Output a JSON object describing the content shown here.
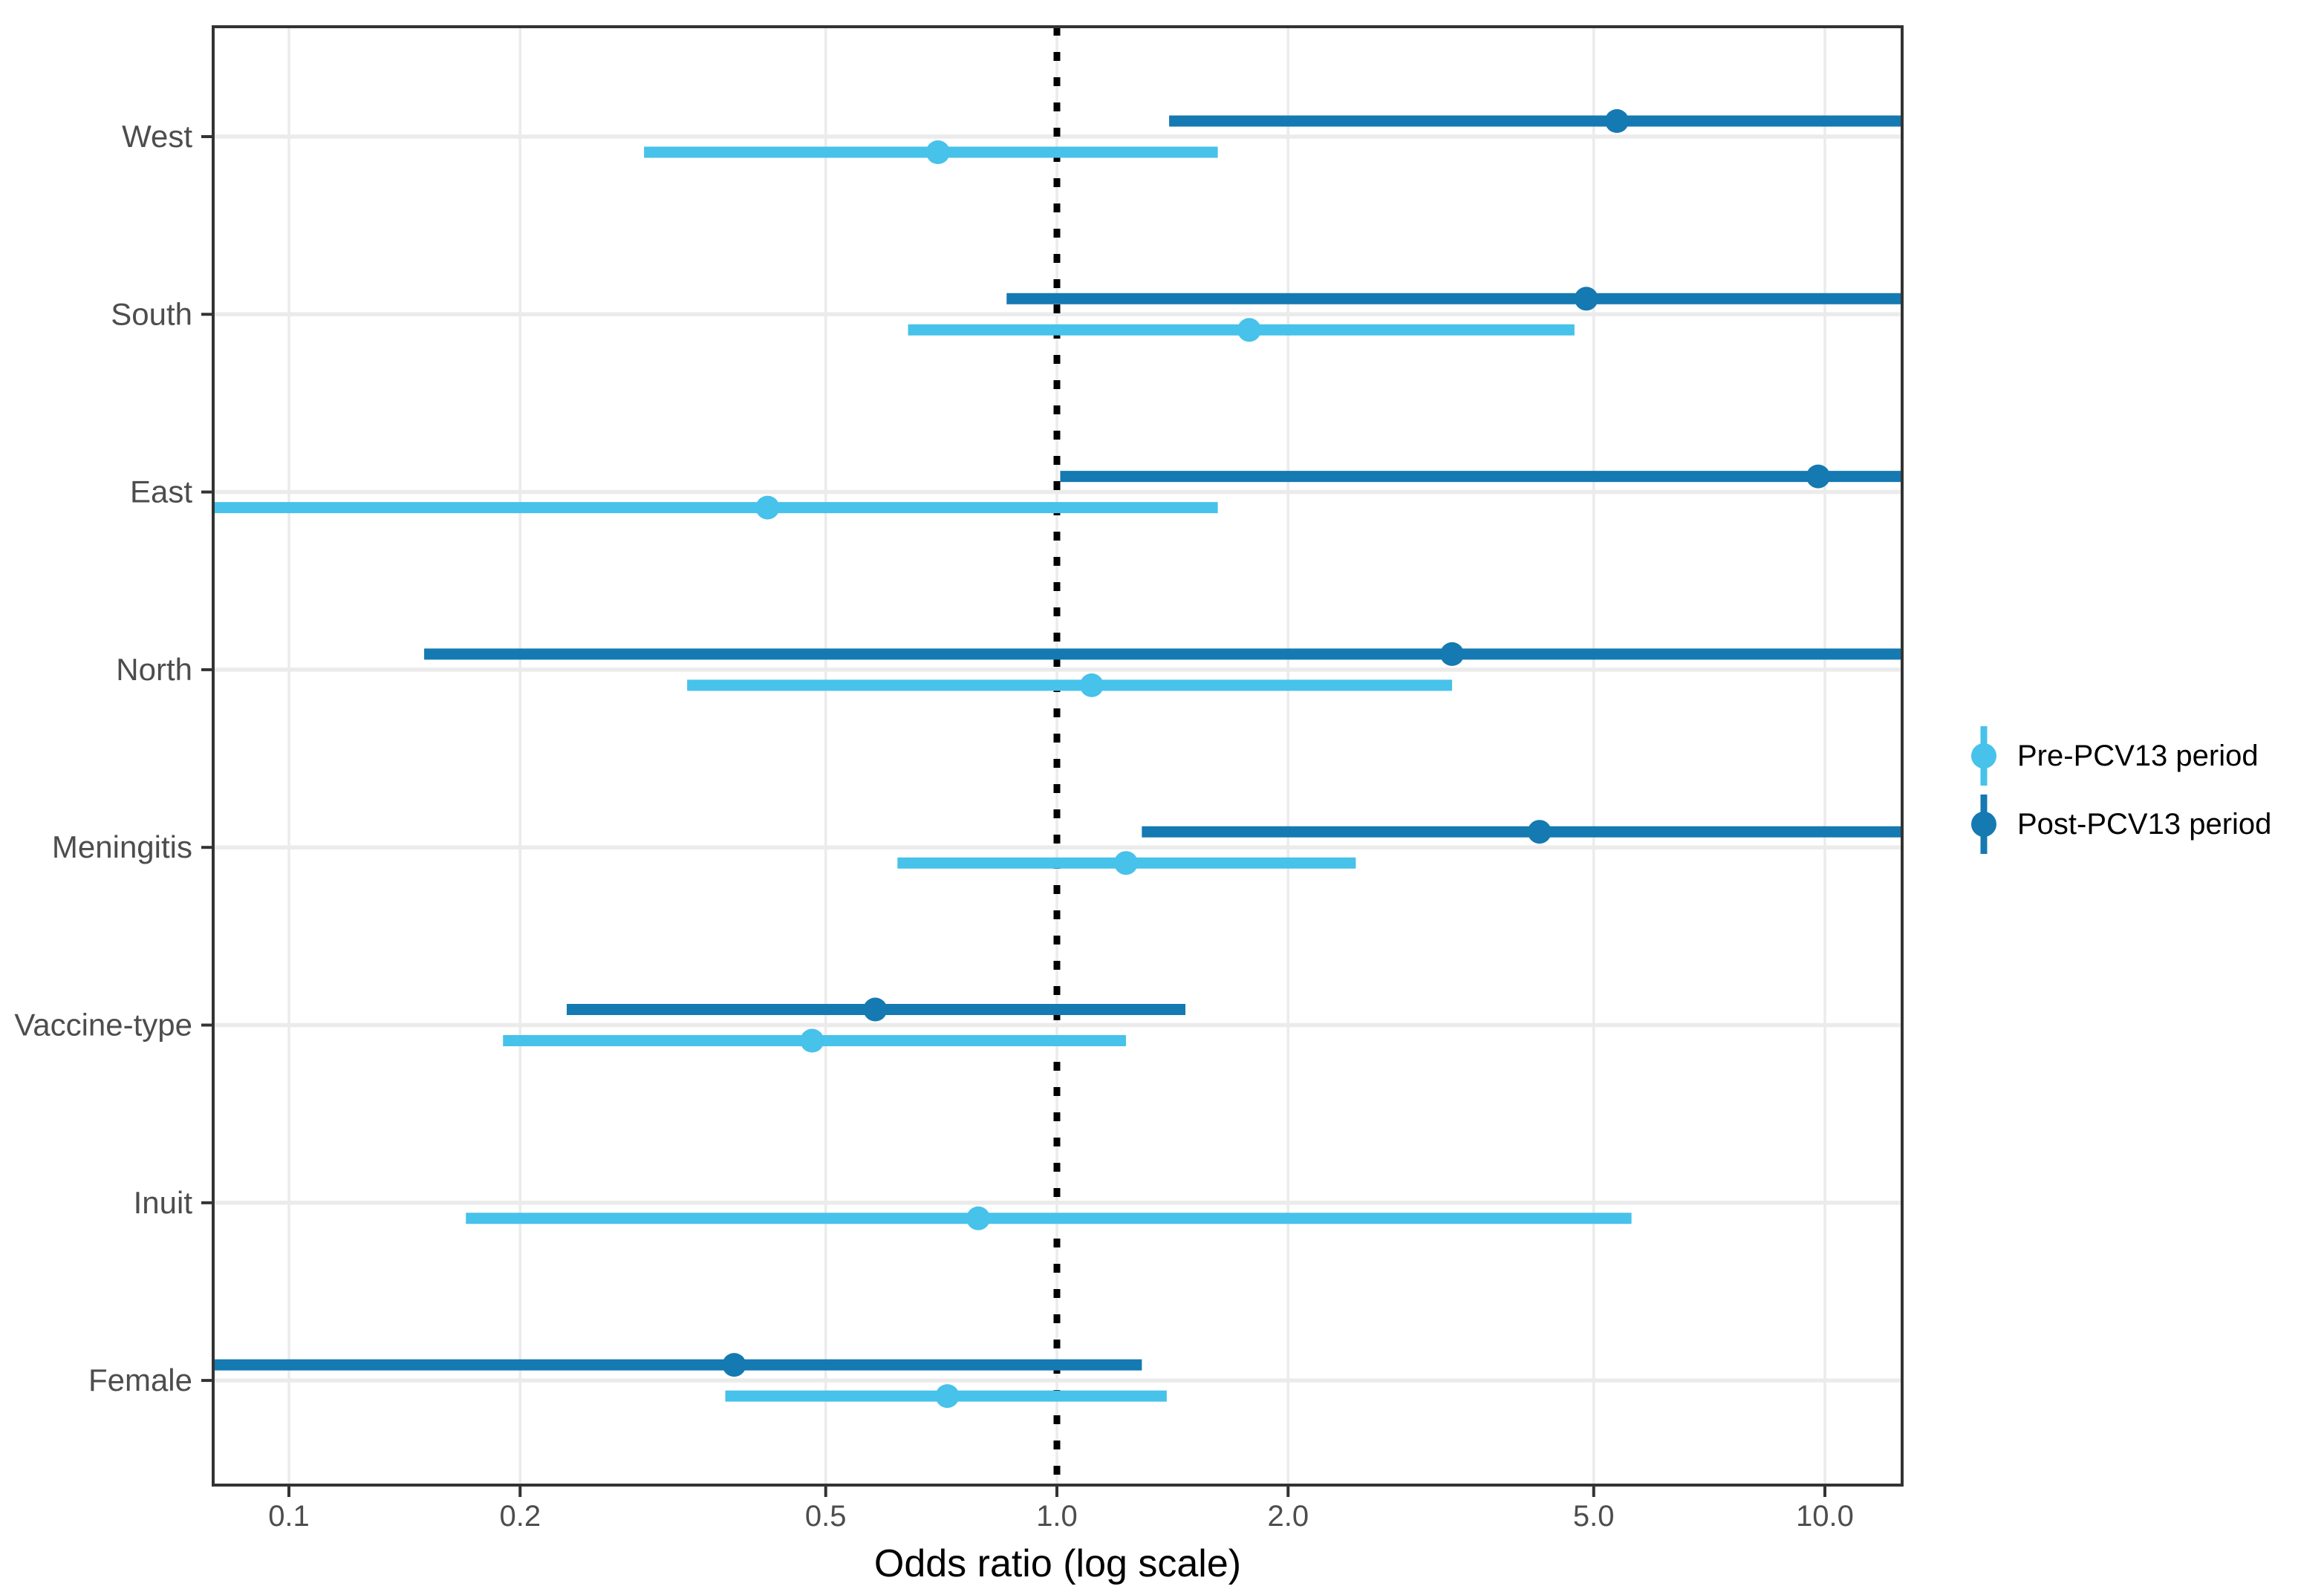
{
  "chart_data": {
    "type": "scatter",
    "subtype": "forest-pointrange",
    "title": "",
    "xlabel": "Odds ratio (log scale)",
    "ylabel": "",
    "x_scale": "log10",
    "x_ticks": [
      0.1,
      0.2,
      0.5,
      1.0,
      2.0,
      5.0,
      10.0
    ],
    "x_tick_labels": [
      "0.1",
      "0.2",
      "0.5",
      "1.0",
      "2.0",
      "5.0",
      "10.0"
    ],
    "x_range": [
      0.08,
      12.6
    ],
    "reference_line": 1.0,
    "grid": "on",
    "legend_position": "right",
    "categories": [
      "West",
      "South",
      "East",
      "North",
      "Meningitis",
      "Vaccine-type",
      "Inuit",
      "Female"
    ],
    "series": [
      {
        "name": "Pre-PCV13 period",
        "color": "#47C2EA",
        "points": [
          {
            "category": "West",
            "or": 0.7,
            "lo": 0.29,
            "hi": 1.62,
            "lo_clipped": false,
            "hi_clipped": false
          },
          {
            "category": "South",
            "or": 1.78,
            "lo": 0.64,
            "hi": 4.72,
            "lo_clipped": false,
            "hi_clipped": false
          },
          {
            "category": "East",
            "or": 0.42,
            "lo": 0.08,
            "hi": 1.62,
            "lo_clipped": true,
            "hi_clipped": false
          },
          {
            "category": "North",
            "or": 1.11,
            "lo": 0.33,
            "hi": 3.27,
            "lo_clipped": false,
            "hi_clipped": false
          },
          {
            "category": "Meningitis",
            "or": 1.23,
            "lo": 0.62,
            "hi": 2.45,
            "lo_clipped": false,
            "hi_clipped": false
          },
          {
            "category": "Vaccine-type",
            "or": 0.48,
            "lo": 0.19,
            "hi": 1.23,
            "lo_clipped": false,
            "hi_clipped": false
          },
          {
            "category": "Inuit",
            "or": 0.79,
            "lo": 0.17,
            "hi": 5.6,
            "lo_clipped": false,
            "hi_clipped": false
          },
          {
            "category": "Female",
            "or": 0.72,
            "lo": 0.37,
            "hi": 1.39,
            "lo_clipped": false,
            "hi_clipped": false
          }
        ]
      },
      {
        "name": "Post-PCV13 period",
        "color": "#1579B2",
        "points": [
          {
            "category": "West",
            "or": 5.36,
            "lo": 1.4,
            "hi": 12.6,
            "lo_clipped": false,
            "hi_clipped": true
          },
          {
            "category": "South",
            "or": 4.89,
            "lo": 0.86,
            "hi": 12.6,
            "lo_clipped": false,
            "hi_clipped": true
          },
          {
            "category": "East",
            "or": 9.8,
            "lo": 1.01,
            "hi": 12.6,
            "lo_clipped": false,
            "hi_clipped": true
          },
          {
            "category": "North",
            "or": 3.27,
            "lo": 0.15,
            "hi": 12.6,
            "lo_clipped": false,
            "hi_clipped": true
          },
          {
            "category": "Meningitis",
            "or": 4.25,
            "lo": 1.29,
            "hi": 12.6,
            "lo_clipped": false,
            "hi_clipped": true
          },
          {
            "category": "Vaccine-type",
            "or": 0.58,
            "lo": 0.23,
            "hi": 1.47,
            "lo_clipped": false,
            "hi_clipped": false
          },
          {
            "category": "Inuit",
            "or": null,
            "lo": null,
            "hi": null,
            "lo_clipped": false,
            "hi_clipped": false
          },
          {
            "category": "Female",
            "or": 0.38,
            "lo": 0.08,
            "hi": 1.29,
            "lo_clipped": true,
            "hi_clipped": false
          }
        ]
      }
    ],
    "colors": {
      "pre_series": "#47C2EA",
      "post_series": "#1579B2",
      "gridline": "#EBEBEB",
      "panel_border": "#333333",
      "tick_label": "#4D4D4D",
      "reference_line": "#000000",
      "background": "#FFFFFF"
    }
  },
  "legend": {
    "pre_label": "Pre-PCV13 period",
    "post_label": "Post-PCV13 period"
  }
}
